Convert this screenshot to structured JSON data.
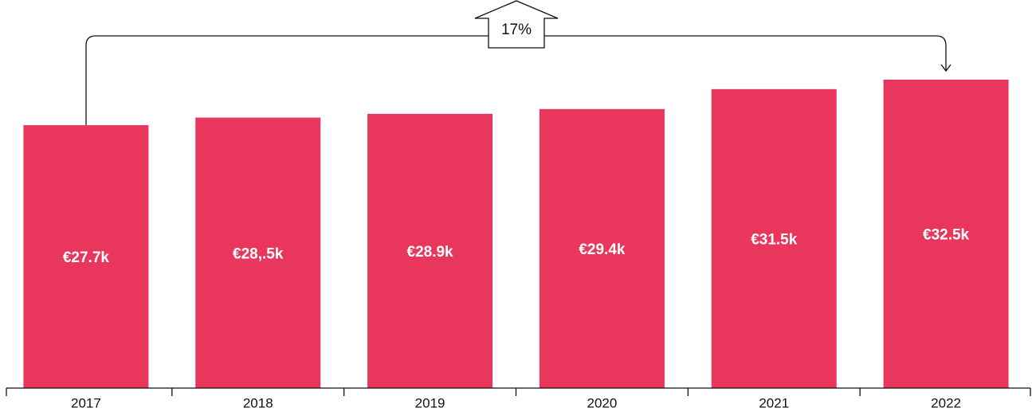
{
  "chart_data": {
    "type": "bar",
    "categories": [
      "2017",
      "2018",
      "2019",
      "2020",
      "2021",
      "2022"
    ],
    "values": [
      27.7,
      28.5,
      28.9,
      29.4,
      31.5,
      32.5
    ],
    "value_labels": [
      "€27.7k",
      "€28,.5k",
      "€28.9k",
      "€29.4k",
      "€31.5k",
      "€32.5k"
    ],
    "color": "#e8365c",
    "annotation": "17%"
  }
}
